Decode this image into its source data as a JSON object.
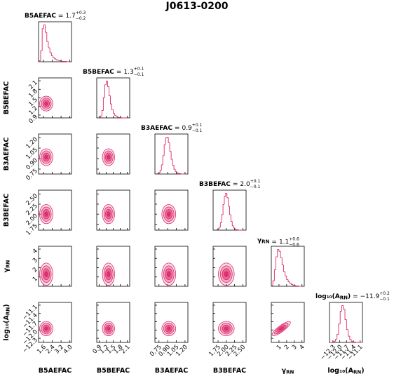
{
  "chart_data": {
    "type": "corner",
    "title": "J0613-0200",
    "color": "#dc2a6b",
    "equals": "=",
    "levels": [
      0.5,
      1,
      1.5,
      2
    ],
    "correlations": [
      {
        "params": [
          4,
          5
        ],
        "rho": 0.85
      }
    ],
    "parameters": [
      {
        "label": "B5AEFAC",
        "value": 1.7,
        "plus": {
          "value": 0.3,
          "label": "+0.3"
        },
        "minus": {
          "value": -0.2,
          "label": "−0.2"
        },
        "lim": [
          1.15,
          4.15
        ],
        "ticks": [
          1.6,
          2.4,
          3.2,
          {
            "value": 4,
            "label": "4.0"
          }
        ],
        "contour_center": 1.85,
        "contour_sigma": 0.3,
        "bins": [
          1.2,
          1.34,
          1.48,
          1.62,
          1.76,
          1.9,
          2.04,
          2.18,
          2.32,
          2.46,
          2.6,
          2.74,
          2.88,
          3.02,
          3.16,
          3.3,
          3.44,
          3.58,
          3.72,
          3.86,
          4.0
        ],
        "counts": [
          3,
          30,
          90,
          100,
          80,
          55,
          38,
          25,
          16,
          11,
          8,
          5,
          4,
          3,
          2,
          1,
          1,
          1,
          0,
          0
        ]
      },
      {
        "label": "B5BEFAC",
        "value": 1.3,
        "plus": {
          "value": 0.1,
          "label": "+0.1"
        },
        "minus": {
          "value": -0.1,
          "label": "−0.1"
        },
        "lim": [
          0.8,
          2.2
        ],
        "ticks": [
          0.9,
          1.2,
          1.5,
          1.8,
          2.1
        ],
        "contour_center": 1.3,
        "contour_sigma": 0.13,
        "bins": [
          0.9,
          0.96,
          1.02,
          1.08,
          1.14,
          1.2,
          1.26,
          1.32,
          1.38,
          1.44,
          1.5,
          1.56,
          1.62,
          1.68,
          1.74,
          1.8,
          1.86,
          1.92,
          1.98,
          2.04,
          2.1
        ],
        "counts": [
          1,
          5,
          20,
          55,
          90,
          100,
          85,
          60,
          38,
          22,
          12,
          7,
          4,
          2,
          1,
          1,
          0,
          0,
          0,
          0
        ]
      },
      {
        "label": "B3AEFAC",
        "value": 0.9,
        "plus": {
          "value": 0.1,
          "label": "+0.1"
        },
        "minus": {
          "value": -0.1,
          "label": "−0.1"
        },
        "lim": [
          0.68,
          1.25
        ],
        "ticks": [
          0.75,
          {
            "value": 0.9,
            "label": "0.90"
          },
          1.05,
          {
            "value": 1.2,
            "label": "1.20"
          }
        ],
        "contour_center": 0.92,
        "contour_sigma": 0.06,
        "bins": [
          0.72,
          0.744,
          0.768,
          0.792,
          0.816,
          0.84,
          0.864,
          0.888,
          0.912,
          0.936,
          0.96,
          0.984,
          1.008,
          1.032,
          1.056,
          1.08,
          1.104,
          1.128,
          1.152,
          1.176,
          1.2
        ],
        "counts": [
          1,
          3,
          10,
          25,
          50,
          80,
          98,
          100,
          85,
          62,
          40,
          24,
          13,
          7,
          3,
          2,
          1,
          0,
          0,
          0
        ]
      },
      {
        "label": "B3BEFAC",
        "value": {
          "value": 2,
          "label": "2.0"
        },
        "plus": {
          "value": 0.1,
          "label": "+0.1"
        },
        "minus": {
          "value": -0.1,
          "label": "−0.1"
        },
        "lim": [
          1.6,
          2.6
        ],
        "ticks": [
          1.75,
          {
            "value": 2,
            "label": "2.00"
          },
          2.25,
          {
            "value": 2.5,
            "label": "2.50"
          }
        ],
        "contour_center": 2.0,
        "contour_sigma": 0.12,
        "bins": [
          1.7,
          1.74,
          1.78,
          1.82,
          1.86,
          1.9,
          1.94,
          1.98,
          2.02,
          2.06,
          2.1,
          2.14,
          2.18,
          2.22,
          2.26,
          2.3,
          2.34,
          2.38,
          2.42,
          2.46,
          2.5
        ],
        "counts": [
          1,
          3,
          8,
          20,
          42,
          70,
          92,
          100,
          88,
          65,
          42,
          24,
          12,
          6,
          3,
          1,
          1,
          0,
          0,
          0
        ]
      },
      {
        "label": "γ",
        "label_sub": "RN",
        "value": 1.1,
        "plus": {
          "value": 0.6,
          "label": "+0.6"
        },
        "minus": {
          "value": -0.6,
          "label": "−0.6"
        },
        "lim": [
          0,
          4.3
        ],
        "ticks": [
          1,
          2,
          3,
          4
        ],
        "contour_center": 1.3,
        "contour_sigma": 0.6,
        "bins": [
          0,
          0.2,
          0.4,
          0.6,
          0.8,
          1.0,
          1.2,
          1.4,
          1.6,
          1.8,
          2.0,
          2.2,
          2.4,
          2.6,
          2.8,
          3.0,
          3.2,
          3.4,
          3.6,
          3.8,
          4.0
        ],
        "counts": [
          2,
          15,
          45,
          80,
          100,
          95,
          78,
          58,
          40,
          28,
          18,
          12,
          8,
          5,
          3,
          2,
          1,
          1,
          0,
          0
        ]
      },
      {
        "label": "log₁₀(A",
        "label_sub": "RN",
        "label_end": ")",
        "value": {
          "value": -11.9,
          "label": "−11.9"
        },
        "plus": {
          "value": 0.2,
          "label": "+0.2"
        },
        "minus": {
          "value": -0.1,
          "label": "−0.1"
        },
        "lim": [
          -12.45,
          -11.0
        ],
        "ticks": [
          {
            "value": -12.3,
            "label": "−12.3"
          },
          {
            "value": -12,
            "label": "−12.0"
          },
          {
            "value": -11.7,
            "label": "−11.7"
          },
          {
            "value": -11.4,
            "label": "−11.4"
          },
          {
            "value": -11.1,
            "label": "−11.1"
          }
        ],
        "contour_center": -11.95,
        "contour_sigma": 0.13,
        "bins": [
          -12.4,
          -12.33,
          -12.26,
          -12.19,
          -12.12,
          -12.05,
          -11.98,
          -11.91,
          -11.84,
          -11.77,
          -11.7,
          -11.63,
          -11.56,
          -11.49,
          -11.42,
          -11.35,
          -11.28,
          -11.21,
          -11.14,
          -11.07,
          -11.0
        ],
        "counts": [
          0,
          1,
          3,
          8,
          22,
          50,
          85,
          100,
          90,
          62,
          35,
          17,
          8,
          3,
          1,
          1,
          0,
          0,
          0,
          0
        ]
      }
    ]
  }
}
